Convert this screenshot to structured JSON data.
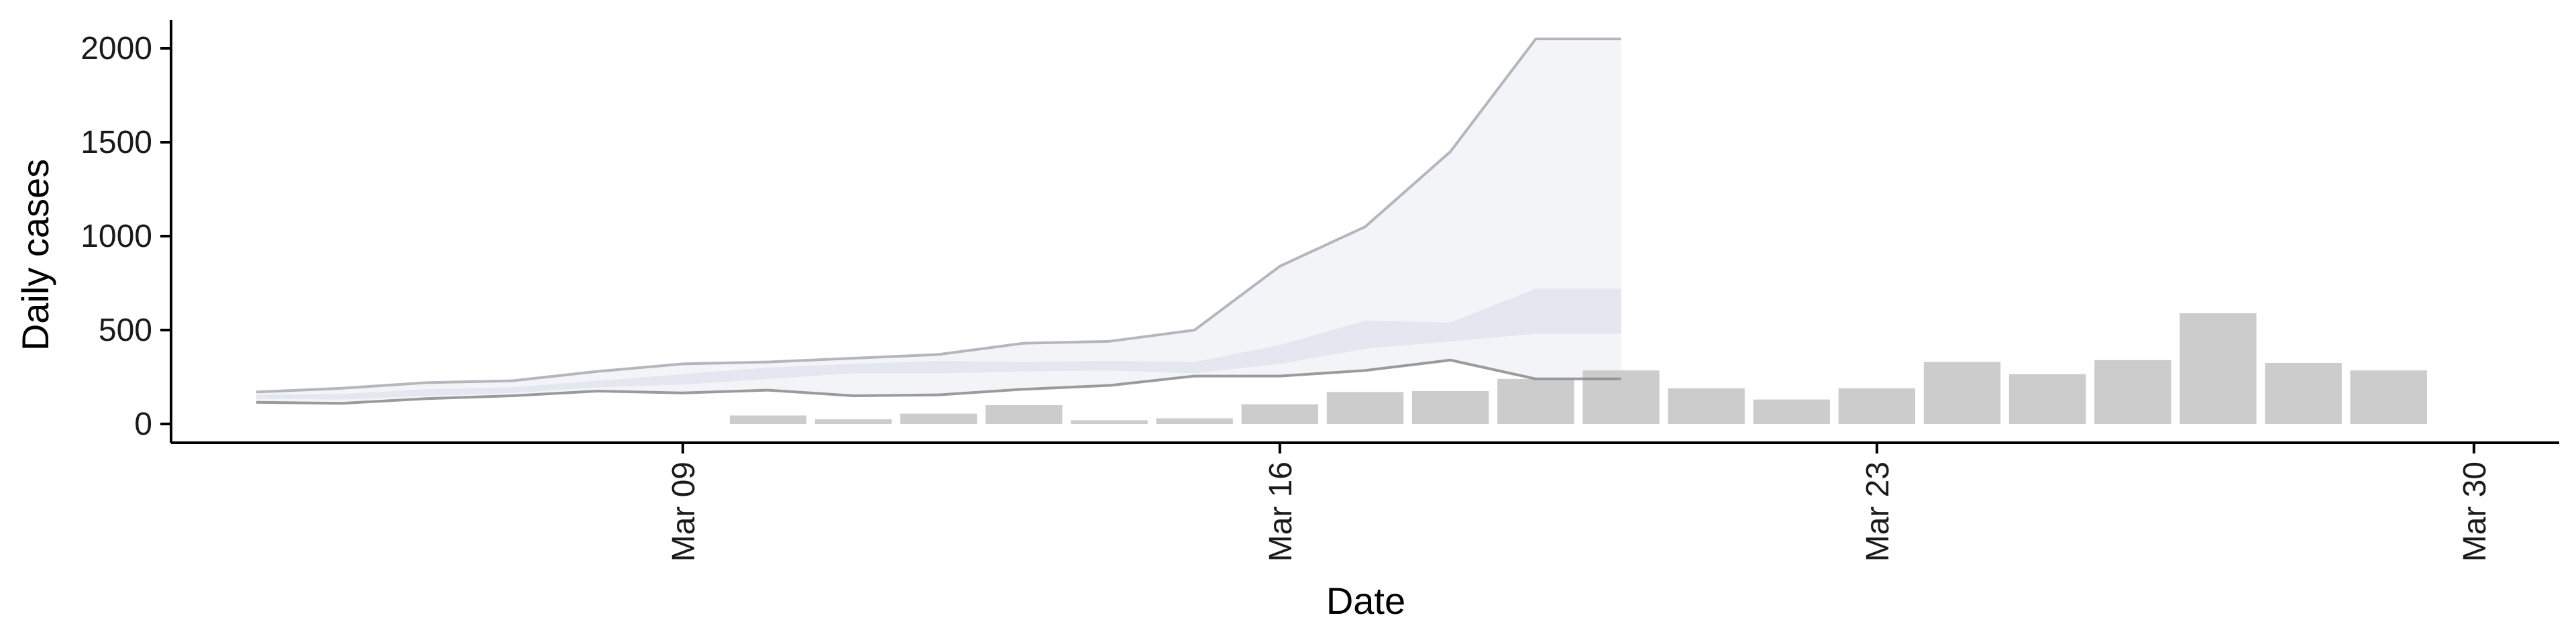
{
  "chart_data": {
    "type": "bar",
    "title": "",
    "xlabel": "Date",
    "ylabel": "Daily cases",
    "x_ticks": [
      "Mar 09",
      "Mar 16",
      "Mar 23",
      "Mar 30"
    ],
    "y_ticks": [
      "0",
      "500",
      "1000",
      "1500",
      "2000"
    ],
    "x_range": [
      "2020-03-03",
      "2020-03-31"
    ],
    "ylim": [
      -100,
      2150
    ],
    "grid": false,
    "legend": "none",
    "colors": {
      "bars": "#cccccc",
      "band_outer": "#eef0f5",
      "band_inner": "#e2e4ee",
      "line_upper": "#a9a9b2",
      "line_lower": "#8a8a8a",
      "axis": "#000000"
    },
    "bars": {
      "dates": [
        "2020-03-10",
        "2020-03-11",
        "2020-03-12",
        "2020-03-13",
        "2020-03-14",
        "2020-03-15",
        "2020-03-16",
        "2020-03-17",
        "2020-03-18",
        "2020-03-19",
        "2020-03-20",
        "2020-03-21",
        "2020-03-22",
        "2020-03-23",
        "2020-03-24",
        "2020-03-25",
        "2020-03-26",
        "2020-03-27",
        "2020-03-28",
        "2020-03-29"
      ],
      "values": [
        45,
        25,
        55,
        100,
        20,
        30,
        105,
        170,
        175,
        240,
        285,
        190,
        130,
        190,
        330,
        265,
        340,
        590,
        325,
        285
      ]
    },
    "band_outer": {
      "dates": [
        "2020-03-04",
        "2020-03-05",
        "2020-03-06",
        "2020-03-07",
        "2020-03-08",
        "2020-03-09",
        "2020-03-10",
        "2020-03-11",
        "2020-03-12",
        "2020-03-13",
        "2020-03-14",
        "2020-03-15",
        "2020-03-16",
        "2020-03-17",
        "2020-03-18",
        "2020-03-19",
        "2020-03-20"
      ],
      "upper": [
        170,
        190,
        220,
        230,
        280,
        320,
        330,
        350,
        370,
        430,
        440,
        500,
        840,
        1050,
        1450,
        2050,
        2050
      ],
      "lower": [
        115,
        110,
        135,
        150,
        175,
        165,
        180,
        150,
        155,
        185,
        205,
        255,
        255,
        285,
        340,
        240,
        240
      ]
    },
    "band_inner": {
      "dates": [
        "2020-03-04",
        "2020-03-05",
        "2020-03-06",
        "2020-03-07",
        "2020-03-08",
        "2020-03-09",
        "2020-03-10",
        "2020-03-11",
        "2020-03-12",
        "2020-03-13",
        "2020-03-14",
        "2020-03-15",
        "2020-03-16",
        "2020-03-17",
        "2020-03-18",
        "2020-03-19",
        "2020-03-20"
      ],
      "upper": [
        155,
        160,
        185,
        195,
        230,
        265,
        300,
        320,
        335,
        330,
        335,
        330,
        420,
        550,
        540,
        720,
        720
      ],
      "lower": [
        135,
        130,
        150,
        165,
        195,
        210,
        240,
        270,
        270,
        280,
        285,
        270,
        320,
        400,
        440,
        480,
        480
      ]
    },
    "line_upper": {
      "dates": [
        "2020-03-04",
        "2020-03-05",
        "2020-03-06",
        "2020-03-07",
        "2020-03-08",
        "2020-03-09",
        "2020-03-10",
        "2020-03-11",
        "2020-03-12",
        "2020-03-13",
        "2020-03-14",
        "2020-03-15",
        "2020-03-16",
        "2020-03-17",
        "2020-03-18",
        "2020-03-19",
        "2020-03-20"
      ],
      "values": [
        170,
        190,
        220,
        230,
        280,
        320,
        330,
        350,
        370,
        430,
        440,
        500,
        840,
        1050,
        1450,
        2050,
        2050
      ]
    },
    "line_lower": {
      "dates": [
        "2020-03-04",
        "2020-03-05",
        "2020-03-06",
        "2020-03-07",
        "2020-03-08",
        "2020-03-09",
        "2020-03-10",
        "2020-03-11",
        "2020-03-12",
        "2020-03-13",
        "2020-03-14",
        "2020-03-15",
        "2020-03-16",
        "2020-03-17",
        "2020-03-18",
        "2020-03-19",
        "2020-03-20"
      ],
      "values": [
        115,
        110,
        135,
        150,
        175,
        165,
        180,
        150,
        155,
        185,
        205,
        255,
        255,
        285,
        340,
        240,
        240
      ]
    }
  }
}
